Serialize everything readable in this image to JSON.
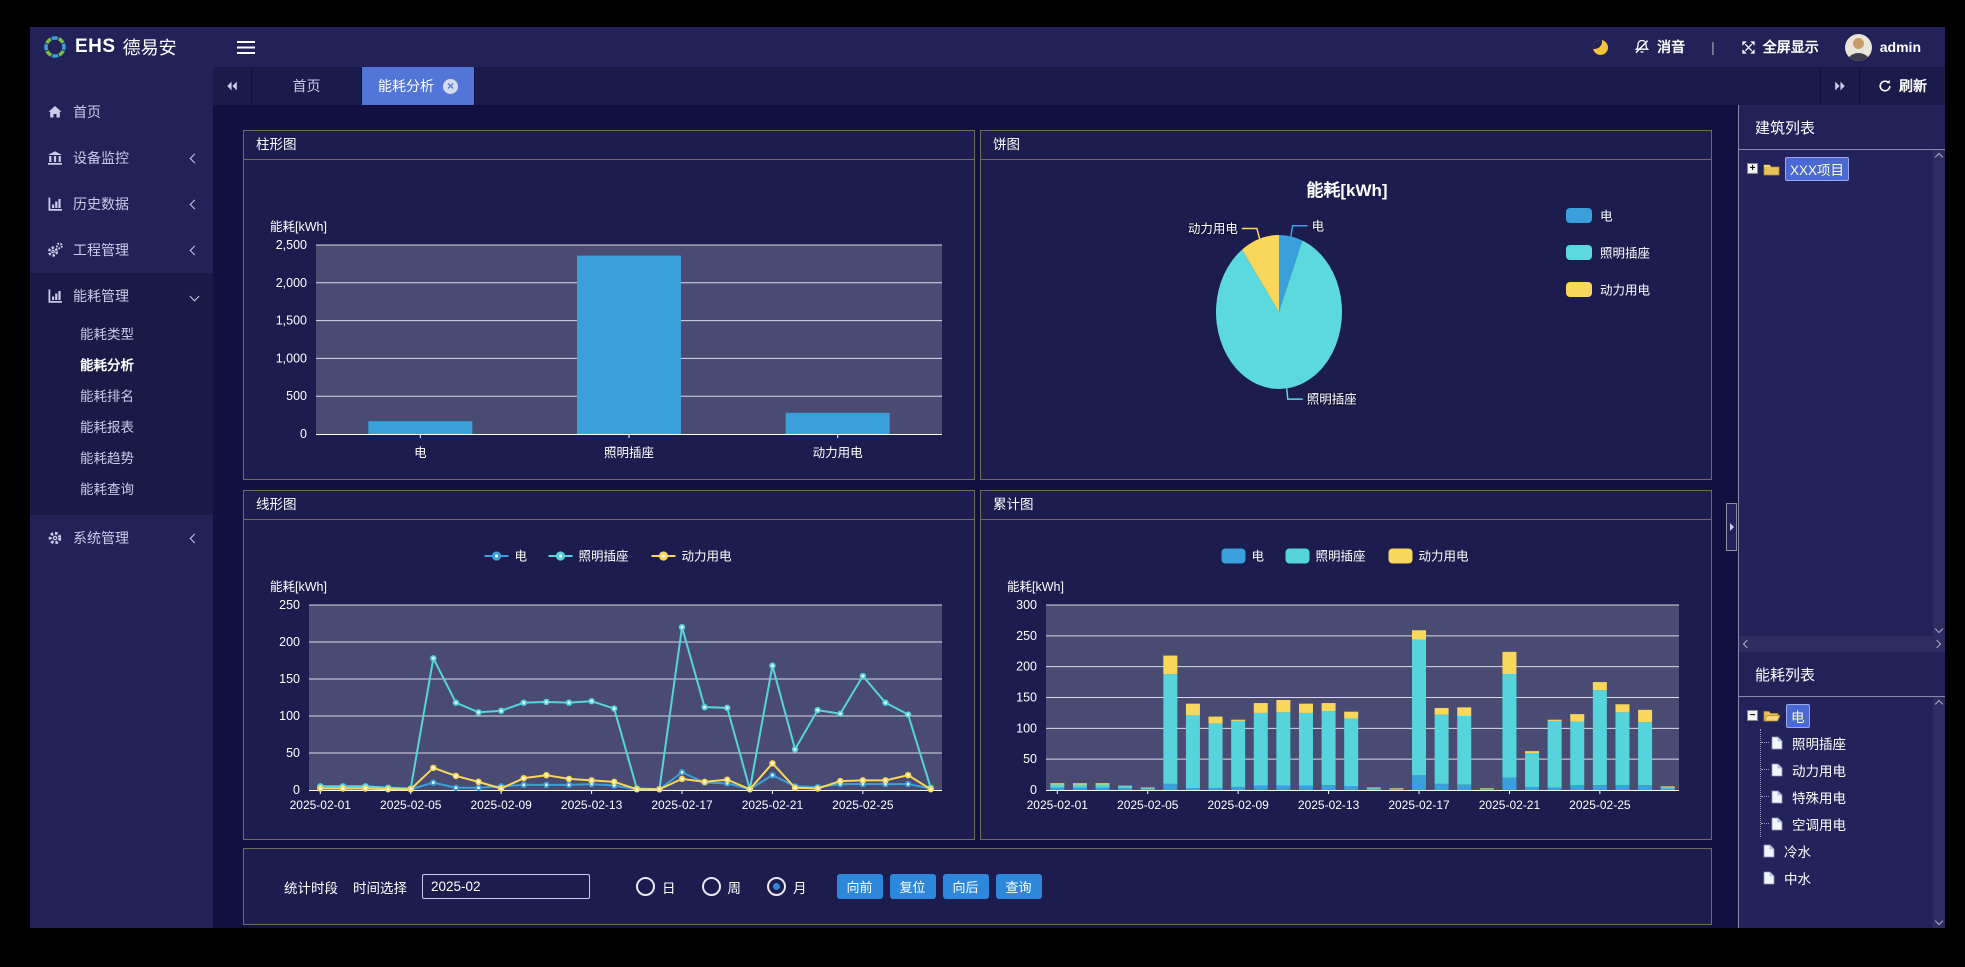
{
  "topbar": {
    "brand_en": "EHS",
    "brand_cn": "德易安",
    "mute": "消音",
    "divider": "|",
    "fullscreen": "全屏显示",
    "user": "admin"
  },
  "sidebar": {
    "items": [
      {
        "label": "首页"
      },
      {
        "label": "设备监控"
      },
      {
        "label": "历史数据"
      },
      {
        "label": "工程管理"
      },
      {
        "label": "能耗管理",
        "expanded": true,
        "children": [
          {
            "label": "能耗类型"
          },
          {
            "label": "能耗分析",
            "active": true
          },
          {
            "label": "能耗排名"
          },
          {
            "label": "能耗报表"
          },
          {
            "label": "能耗趋势"
          },
          {
            "label": "能耗查询"
          }
        ]
      },
      {
        "label": "系统管理"
      }
    ]
  },
  "tabbar": {
    "tabs": [
      {
        "label": "首页"
      },
      {
        "label": "能耗分析",
        "active": true,
        "closable": true
      }
    ],
    "refresh": "刷新"
  },
  "controls": {
    "period_label": "统计时段",
    "time_label": "时间选择",
    "time_value": "2025-02",
    "radios": [
      {
        "label": "日",
        "checked": false
      },
      {
        "label": "周",
        "checked": false
      },
      {
        "label": "月",
        "checked": true
      }
    ],
    "buttons": [
      "向前",
      "复位",
      "向后",
      "查询"
    ]
  },
  "rightbar": {
    "building_title": "建筑列表",
    "tree_building": [
      {
        "label": "XXX项目",
        "selected": true
      }
    ],
    "energy_title": "能耗列表",
    "tree_energy": [
      {
        "label": "电",
        "selected": true,
        "children": [
          "照明插座",
          "动力用电",
          "特殊用电",
          "空调用电"
        ]
      },
      {
        "label": "冷水"
      },
      {
        "label": "中水"
      }
    ]
  },
  "colors": {
    "blue": "#3AA0DC",
    "cyan": "#55D4DB",
    "yellow": "#F8D75A",
    "accent": "#2D87DB",
    "plot_bg": "#4A4B73"
  },
  "chart_data": [
    {
      "type": "bar",
      "panel_title": "柱形图",
      "ylabel": "能耗[kWh]",
      "categories": [
        "电",
        "照明插座",
        "动力用电"
      ],
      "values": [
        170,
        2360,
        280
      ],
      "ylim": [
        0,
        2500
      ],
      "ytick_step": 500,
      "bar_color": "#3AA0DC",
      "grid": true
    },
    {
      "type": "pie",
      "panel_title": "饼图",
      "title": "能耗[kWh]",
      "labels": [
        "电",
        "照明插座",
        "动力用电"
      ],
      "values": [
        170,
        2360,
        280
      ],
      "colors": [
        "#3AA0DC",
        "#5CD9DF",
        "#F8D75A"
      ],
      "legend_position": "right"
    },
    {
      "type": "line",
      "panel_title": "线形图",
      "ylabel": "能耗[kWh]",
      "x": [
        "2025-02-01",
        "2025-02-02",
        "2025-02-03",
        "2025-02-04",
        "2025-02-05",
        "2025-02-06",
        "2025-02-07",
        "2025-02-08",
        "2025-02-09",
        "2025-02-10",
        "2025-02-11",
        "2025-02-12",
        "2025-02-13",
        "2025-02-14",
        "2025-02-15",
        "2025-02-16",
        "2025-02-17",
        "2025-02-18",
        "2025-02-19",
        "2025-02-20",
        "2025-02-21",
        "2025-02-22",
        "2025-02-23",
        "2025-02-24",
        "2025-02-25",
        "2025-02-26",
        "2025-02-27",
        "2025-02-28"
      ],
      "x_label_every": 4,
      "ylim": [
        0,
        250
      ],
      "ytick_step": 50,
      "grid": true,
      "legend_position": "top",
      "series": [
        {
          "name": "电",
          "color": "#3AA0DC",
          "values": [
            4,
            4,
            4,
            3,
            1,
            10,
            3,
            3,
            5,
            7,
            7,
            7,
            8,
            6,
            1,
            1,
            24,
            10,
            9,
            1,
            20,
            5,
            4,
            8,
            8,
            8,
            8,
            2
          ]
        },
        {
          "name": "照明插座",
          "color": "#55D4DB",
          "values": [
            5,
            5,
            5,
            3,
            2,
            178,
            118,
            105,
            107,
            118,
            119,
            118,
            120,
            110,
            2,
            1,
            220,
            112,
            111,
            1,
            168,
            55,
            108,
            103,
            154,
            118,
            102,
            3
          ]
        },
        {
          "name": "动力用电",
          "color": "#F8D75A",
          "values": [
            2,
            2,
            2,
            1,
            1,
            30,
            19,
            11,
            2,
            16,
            20,
            15,
            13,
            11,
            1,
            1,
            15,
            11,
            14,
            1,
            36,
            3,
            2,
            12,
            13,
            13,
            20,
            1
          ]
        }
      ]
    },
    {
      "type": "stacked_bar",
      "panel_title": "累计图",
      "ylabel": "能耗[kWh]",
      "x": [
        "2025-02-01",
        "2025-02-02",
        "2025-02-03",
        "2025-02-04",
        "2025-02-05",
        "2025-02-06",
        "2025-02-07",
        "2025-02-08",
        "2025-02-09",
        "2025-02-10",
        "2025-02-11",
        "2025-02-12",
        "2025-02-13",
        "2025-02-14",
        "2025-02-15",
        "2025-02-16",
        "2025-02-17",
        "2025-02-18",
        "2025-02-19",
        "2025-02-20",
        "2025-02-21",
        "2025-02-22",
        "2025-02-23",
        "2025-02-24",
        "2025-02-25",
        "2025-02-26",
        "2025-02-27",
        "2025-02-28"
      ],
      "x_label_every": 4,
      "ylim": [
        0,
        300
      ],
      "ytick_step": 50,
      "grid": true,
      "legend_position": "top",
      "series": [
        {
          "name": "电",
          "color": "#3AA0DC",
          "values": [
            4,
            4,
            4,
            3,
            1,
            10,
            3,
            3,
            5,
            7,
            7,
            7,
            8,
            6,
            1,
            1,
            24,
            10,
            9,
            1,
            20,
            5,
            4,
            8,
            8,
            8,
            8,
            2
          ]
        },
        {
          "name": "照明插座",
          "color": "#55D4DB",
          "values": [
            5,
            5,
            5,
            3,
            2,
            178,
            118,
            105,
            107,
            118,
            119,
            118,
            120,
            110,
            2,
            1,
            220,
            112,
            111,
            1,
            168,
            55,
            108,
            103,
            154,
            118,
            102,
            3
          ]
        },
        {
          "name": "动力用电",
          "color": "#F8D75A",
          "values": [
            2,
            2,
            2,
            1,
            1,
            30,
            19,
            11,
            2,
            16,
            20,
            15,
            13,
            11,
            1,
            1,
            15,
            11,
            14,
            1,
            36,
            3,
            2,
            12,
            13,
            13,
            20,
            1
          ]
        }
      ]
    }
  ]
}
